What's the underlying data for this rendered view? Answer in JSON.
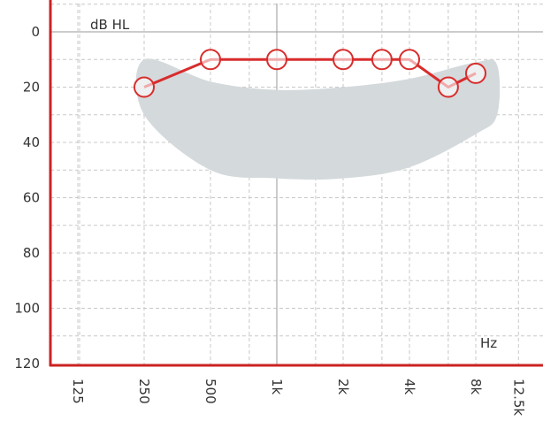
{
  "chart_data": {
    "type": "line",
    "chart_kind": "audiogram",
    "y_unit_label": "dB HL",
    "x_unit_label": "Hz",
    "y_axis": {
      "reversed": true,
      "ylim": [
        -10,
        120
      ],
      "ticks": [
        0,
        20,
        40,
        60,
        80,
        100,
        120
      ]
    },
    "x_axis": {
      "scale": "log",
      "tick_labels": [
        "125",
        "250",
        "500",
        "1k",
        "2k",
        "4k",
        "8k",
        "12.5k"
      ],
      "tick_values_hz": [
        125,
        250,
        500,
        1000,
        2000,
        4000,
        8000,
        12500
      ]
    },
    "grid": true,
    "series": [
      {
        "marker": "circle",
        "color": "#d92c2c",
        "points": [
          {
            "x": 250,
            "y": 20
          },
          {
            "x": 500,
            "y": 10
          },
          {
            "x": 1000,
            "y": 10
          },
          {
            "x": 2000,
            "y": 10
          },
          {
            "x": 3000,
            "y": 10
          },
          {
            "x": 4000,
            "y": 10
          },
          {
            "x": 6000,
            "y": 20
          },
          {
            "x": 8000,
            "y": 15
          }
        ]
      }
    ],
    "shaded_region": {
      "color": "#d4d9dc",
      "upper": [
        {
          "x": 250,
          "y": 10
        },
        {
          "x": 500,
          "y": 18
        },
        {
          "x": 1000,
          "y": 21
        },
        {
          "x": 2000,
          "y": 20
        },
        {
          "x": 4000,
          "y": 17
        },
        {
          "x": 8000,
          "y": 11
        },
        {
          "x": 10000,
          "y": 12
        }
      ],
      "lower": [
        {
          "x": 10000,
          "y": 30
        },
        {
          "x": 8000,
          "y": 37
        },
        {
          "x": 4000,
          "y": 49
        },
        {
          "x": 2000,
          "y": 53
        },
        {
          "x": 1000,
          "y": 53
        },
        {
          "x": 500,
          "y": 50
        },
        {
          "x": 250,
          "y": 30
        }
      ]
    },
    "colors": {
      "axis": "#cc2222",
      "grid": "#c8c8c8",
      "major_grid": "#999999",
      "text": "#333333"
    }
  }
}
